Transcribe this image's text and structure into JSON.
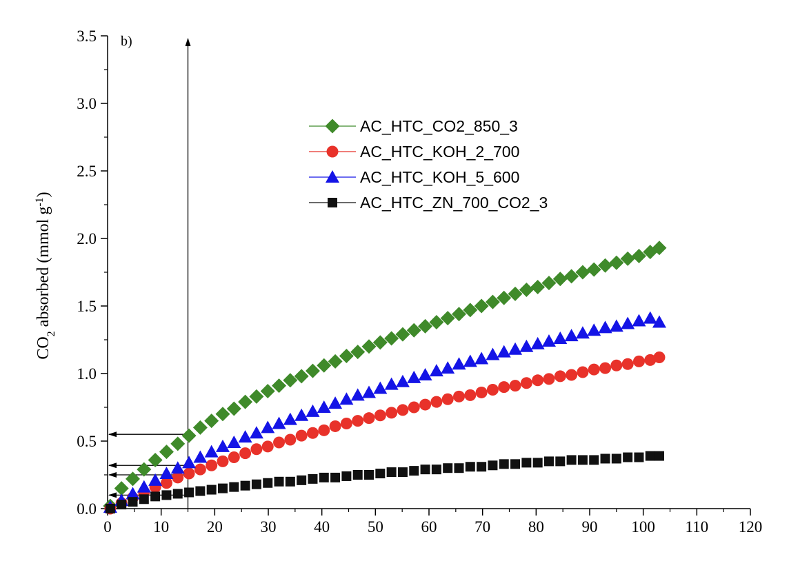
{
  "chart_data": {
    "type": "scatter",
    "panel_label": "b)",
    "xlabel": "",
    "ylabel": {
      "prefix": "CO",
      "sub": "2",
      "mid": " absorbed (mmol g",
      "sup": "-1",
      "suffix": ")"
    },
    "xlim": [
      0,
      120
    ],
    "ylim": [
      0,
      3.5
    ],
    "x_ticks": [
      0,
      10,
      20,
      30,
      40,
      50,
      60,
      70,
      80,
      90,
      100,
      110,
      120
    ],
    "y_ticks": [
      "0.0",
      "0.5",
      "1.0",
      "1.5",
      "2.0",
      "2.5",
      "3.0",
      "3.5"
    ],
    "grid": false,
    "legend_position": "upper-center",
    "x": [
      0.5,
      2.6,
      4.7,
      6.8,
      8.9,
      11.0,
      13.1,
      15.2,
      17.3,
      19.4,
      21.5,
      23.6,
      25.7,
      27.8,
      29.9,
      32.0,
      34.1,
      36.2,
      38.3,
      40.4,
      42.5,
      44.6,
      46.7,
      48.8,
      50.9,
      53.0,
      55.1,
      57.2,
      59.3,
      61.4,
      63.5,
      65.6,
      67.7,
      69.8,
      71.9,
      74.0,
      76.1,
      78.2,
      80.3,
      82.4,
      84.5,
      86.6,
      88.7,
      90.8,
      92.9,
      95.0,
      97.1,
      99.2,
      101.3,
      103.0
    ],
    "series": [
      {
        "name": "AC_HTC_CO2_850_3",
        "color": "#3f8a2a",
        "marker": "diamond",
        "values": [
          0.02,
          0.15,
          0.22,
          0.29,
          0.36,
          0.42,
          0.48,
          0.54,
          0.6,
          0.65,
          0.7,
          0.74,
          0.79,
          0.83,
          0.87,
          0.91,
          0.95,
          0.98,
          1.02,
          1.06,
          1.09,
          1.13,
          1.16,
          1.2,
          1.23,
          1.26,
          1.29,
          1.32,
          1.35,
          1.38,
          1.41,
          1.44,
          1.47,
          1.5,
          1.53,
          1.56,
          1.59,
          1.62,
          1.64,
          1.67,
          1.7,
          1.72,
          1.75,
          1.77,
          1.8,
          1.82,
          1.85,
          1.87,
          1.9,
          1.93
        ]
      },
      {
        "name": "AC_HTC_KOH_2_700",
        "color": "#e8322a",
        "marker": "circle",
        "values": [
          0.0,
          0.04,
          0.08,
          0.12,
          0.16,
          0.19,
          0.23,
          0.26,
          0.29,
          0.32,
          0.35,
          0.38,
          0.41,
          0.44,
          0.46,
          0.49,
          0.51,
          0.54,
          0.56,
          0.58,
          0.61,
          0.63,
          0.65,
          0.67,
          0.69,
          0.71,
          0.73,
          0.75,
          0.77,
          0.79,
          0.81,
          0.83,
          0.84,
          0.86,
          0.88,
          0.9,
          0.91,
          0.93,
          0.95,
          0.96,
          0.98,
          0.99,
          1.01,
          1.03,
          1.04,
          1.06,
          1.07,
          1.09,
          1.1,
          1.12
        ]
      },
      {
        "name": "AC_HTC_KOH_5_600",
        "color": "#1414e6",
        "marker": "triangle",
        "values": [
          0.01,
          0.06,
          0.11,
          0.16,
          0.21,
          0.26,
          0.3,
          0.34,
          0.38,
          0.42,
          0.46,
          0.49,
          0.53,
          0.56,
          0.6,
          0.63,
          0.66,
          0.69,
          0.72,
          0.75,
          0.78,
          0.81,
          0.84,
          0.86,
          0.89,
          0.92,
          0.94,
          0.97,
          0.99,
          1.02,
          1.04,
          1.07,
          1.09,
          1.11,
          1.14,
          1.16,
          1.18,
          1.2,
          1.22,
          1.24,
          1.26,
          1.28,
          1.3,
          1.32,
          1.34,
          1.35,
          1.37,
          1.39,
          1.41,
          1.38
        ]
      },
      {
        "name": "AC_HTC_ZN_700_CO2_3",
        "color": "#111111",
        "marker": "square",
        "values": [
          0.0,
          0.03,
          0.05,
          0.07,
          0.09,
          0.1,
          0.11,
          0.12,
          0.13,
          0.14,
          0.15,
          0.16,
          0.17,
          0.18,
          0.19,
          0.2,
          0.2,
          0.21,
          0.22,
          0.23,
          0.23,
          0.24,
          0.25,
          0.25,
          0.26,
          0.27,
          0.27,
          0.28,
          0.29,
          0.29,
          0.3,
          0.3,
          0.31,
          0.31,
          0.32,
          0.33,
          0.33,
          0.34,
          0.34,
          0.35,
          0.35,
          0.36,
          0.36,
          0.36,
          0.37,
          0.37,
          0.38,
          0.38,
          0.39,
          0.39
        ]
      }
    ],
    "annotations": {
      "vertical_line_x": 15,
      "horizontal_arrows_y": [
        0.55,
        0.32,
        0.25,
        0.1
      ]
    }
  }
}
